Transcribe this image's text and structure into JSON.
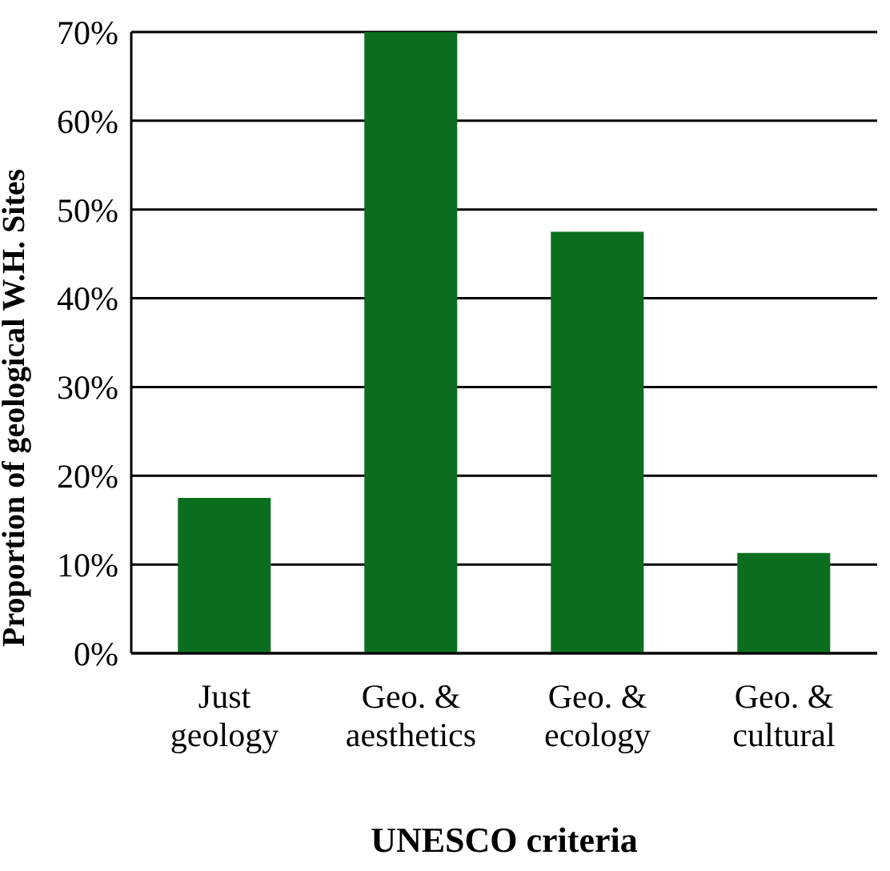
{
  "chart_data": {
    "type": "bar",
    "xlabel": "UNESCO criteria",
    "ylabel": "Proportion of geological W.H. Sites",
    "categories": [
      "Just geology",
      "Geo. & aesthetics",
      "Geo. & ecology",
      "Geo. & cultural"
    ],
    "values": [
      17.5,
      70,
      47.5,
      11.3
    ],
    "color": "#0b6e1f",
    "ylim": [
      0,
      70
    ],
    "yticks": [
      {
        "value": 0,
        "label": "0%"
      },
      {
        "value": 10,
        "label": "10%"
      },
      {
        "value": 20,
        "label": "20%"
      },
      {
        "value": 30,
        "label": "30%"
      },
      {
        "value": 40,
        "label": "40%"
      },
      {
        "value": 50,
        "label": "50%"
      },
      {
        "value": 60,
        "label": "60%"
      },
      {
        "value": 70,
        "label": "70%"
      }
    ],
    "grid": "y"
  }
}
